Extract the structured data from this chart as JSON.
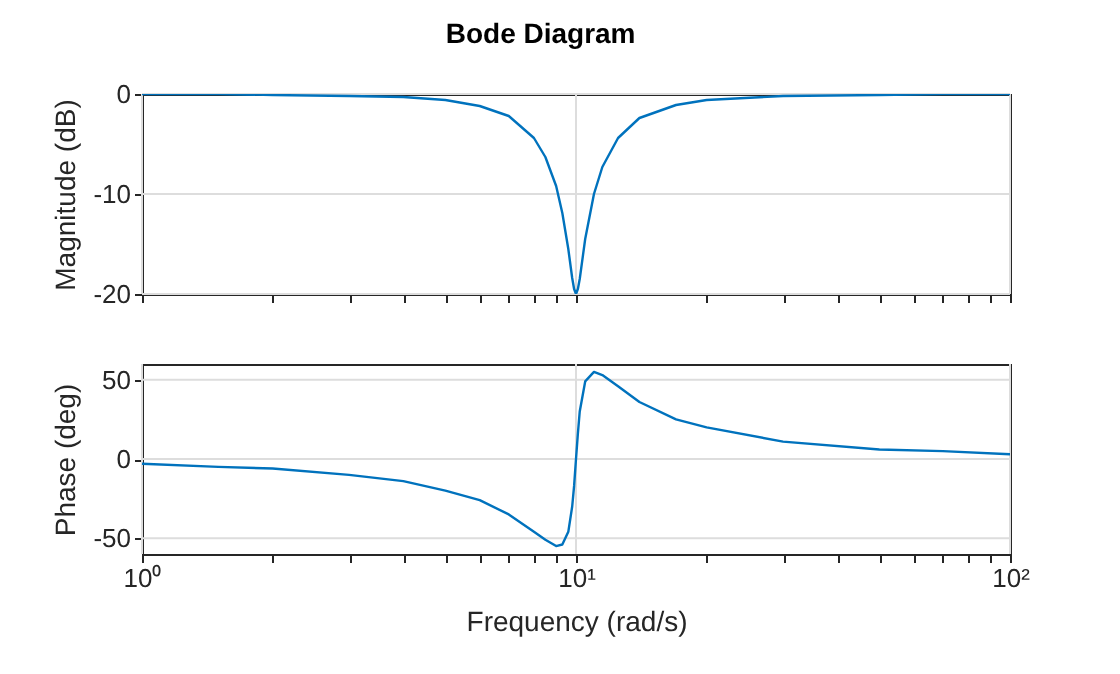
{
  "chart_data": [
    {
      "type": "line",
      "title": "Bode Diagram",
      "ylabel": "Magnitude (dB)",
      "log": "x",
      "grid": true,
      "tick_labels": "y",
      "x": [
        1,
        1.5,
        2,
        3,
        4,
        5,
        6,
        7,
        8,
        8.5,
        9,
        9.3,
        9.6,
        9.8,
        9.9,
        10,
        10.1,
        10.2,
        10.5,
        11,
        11.5,
        12.5,
        14,
        17,
        20,
        30,
        50,
        70,
        100
      ],
      "series": [
        {
          "color": "#0072bd",
          "values": [
            0,
            0,
            -0.1,
            -0.2,
            -0.3,
            -0.6,
            -1.2,
            -2.2,
            -4.4,
            -6.3,
            -9.2,
            -11.9,
            -15.5,
            -18.4,
            -19.5,
            -20,
            -19.5,
            -18.5,
            -14.5,
            -10,
            -7.3,
            -4.4,
            -2.4,
            -1.1,
            -0.6,
            -0.2,
            -0.1,
            0,
            0
          ]
        }
      ],
      "xlim": [
        1,
        100
      ],
      "xticks": [
        {
          "value": 1,
          "label": null
        },
        {
          "value": 2,
          "label": null
        },
        {
          "value": 3,
          "label": null
        },
        {
          "value": 4,
          "label": null
        },
        {
          "value": 5,
          "label": null
        },
        {
          "value": 6,
          "label": null
        },
        {
          "value": 7,
          "label": null
        },
        {
          "value": 8,
          "label": null
        },
        {
          "value": 9,
          "label": null
        },
        {
          "value": 10,
          "label": null
        },
        {
          "value": 20,
          "label": null
        },
        {
          "value": 30,
          "label": null
        },
        {
          "value": 40,
          "label": null
        },
        {
          "value": 50,
          "label": null
        },
        {
          "value": 60,
          "label": null
        },
        {
          "value": 70,
          "label": null
        },
        {
          "value": 80,
          "label": null
        },
        {
          "value": 90,
          "label": null
        },
        {
          "value": 100,
          "label": null
        }
      ],
      "ylim": [
        -20,
        0
      ],
      "yticks": [
        -20,
        -10,
        0
      ]
    },
    {
      "type": "line",
      "xlabel": "Frequency (rad/s)",
      "ylabel": "Phase (deg)",
      "log": "x",
      "grid": true,
      "x": [
        1,
        1.5,
        2,
        3,
        4,
        5,
        6,
        7,
        8,
        8.5,
        9,
        9.3,
        9.6,
        9.8,
        9.9,
        10,
        10.1,
        10.2,
        10.5,
        11,
        11.5,
        12.5,
        14,
        17,
        20,
        30,
        50,
        70,
        100
      ],
      "series": [
        {
          "color": "#0072bd",
          "values": [
            -3,
            -5,
            -6,
            -10,
            -14,
            -20,
            -26,
            -35,
            -46,
            -51,
            -55,
            -54,
            -46,
            -30,
            -17,
            0,
            16,
            30,
            49,
            55,
            53,
            46,
            36,
            25,
            20,
            11,
            6,
            5,
            3
          ]
        }
      ],
      "xlim": [
        1,
        100
      ],
      "xticks": [
        {
          "value": 1,
          "label": "10⁰"
        },
        {
          "value": 2,
          "label": null
        },
        {
          "value": 3,
          "label": null
        },
        {
          "value": 4,
          "label": null
        },
        {
          "value": 5,
          "label": null
        },
        {
          "value": 6,
          "label": null
        },
        {
          "value": 7,
          "label": null
        },
        {
          "value": 8,
          "label": null
        },
        {
          "value": 9,
          "label": null
        },
        {
          "value": 10,
          "label": "10¹"
        },
        {
          "value": 20,
          "label": null
        },
        {
          "value": 30,
          "label": null
        },
        {
          "value": 40,
          "label": null
        },
        {
          "value": 50,
          "label": null
        },
        {
          "value": 60,
          "label": null
        },
        {
          "value": 70,
          "label": null
        },
        {
          "value": 80,
          "label": null
        },
        {
          "value": 90,
          "label": null
        },
        {
          "value": 100,
          "label": "10²"
        }
      ],
      "ylim": [
        -60,
        60
      ],
      "yticks": [
        -50,
        0,
        50
      ]
    }
  ]
}
